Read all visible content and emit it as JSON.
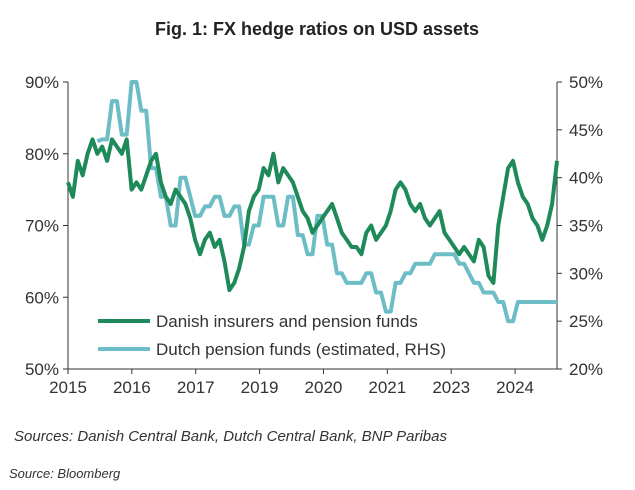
{
  "chart_data": {
    "type": "line",
    "title": "Fig. 1: FX hedge ratios on USD assets",
    "xlabel": "",
    "ylabel": "",
    "x_tick_labels": [
      "2015",
      "2016",
      "2017",
      "2019",
      "2020",
      "2021",
      "2023",
      "2024"
    ],
    "y_left": {
      "range": [
        50,
        90
      ],
      "ticks": [
        90,
        80,
        70,
        60,
        50
      ],
      "tick_labels": [
        "90%",
        "80%",
        "70%",
        "60%",
        "50%"
      ]
    },
    "y_right": {
      "range": [
        20,
        50
      ],
      "ticks": [
        50,
        45,
        40,
        35,
        30,
        25,
        20
      ],
      "tick_labels": [
        "50%",
        "45%",
        "40%",
        "35%",
        "30%",
        "25%",
        "20%"
      ]
    },
    "x_range": [
      0,
      100
    ],
    "x_tick_positions": [
      0,
      13.06,
      26.12,
      39.18,
      52.24,
      65.3,
      78.37,
      91.43
    ],
    "legend": {
      "position": "bottom-left"
    },
    "series": [
      {
        "name": "Danish insurers and pension funds",
        "axis": "left",
        "color": "#1e8a5a",
        "x": [
          0,
          1,
          2,
          3,
          4,
          5,
          6,
          7,
          8,
          9,
          10,
          11,
          12,
          13,
          14,
          15,
          16,
          17,
          18,
          19,
          20,
          21,
          22,
          23,
          24,
          25,
          26,
          27,
          28,
          29,
          30,
          31,
          32,
          33,
          34,
          35,
          36,
          37,
          38,
          39,
          40,
          41,
          42,
          43,
          44,
          45,
          46,
          47,
          48,
          49,
          50,
          51,
          52,
          53,
          54,
          55,
          56,
          57,
          58,
          59,
          60,
          61,
          62,
          63,
          64,
          65,
          66,
          67,
          68,
          69,
          70,
          71,
          72,
          73,
          74,
          75,
          76,
          77,
          78,
          79,
          80,
          81,
          82,
          83,
          84,
          85,
          86,
          87,
          88,
          89,
          90,
          91,
          92,
          93,
          94,
          95,
          96,
          97,
          98,
          99,
          100
        ],
        "y": [
          76,
          74,
          79,
          77,
          80,
          82,
          80,
          81,
          79,
          82,
          81,
          80,
          82,
          75,
          76,
          75,
          77,
          79,
          80,
          76,
          74,
          73,
          75,
          74,
          73,
          71,
          68,
          66,
          68,
          69,
          67,
          68,
          65,
          61,
          62,
          64,
          67,
          72,
          74,
          75,
          78,
          77,
          80,
          76,
          78,
          77,
          76,
          74,
          72,
          71,
          69,
          70,
          71,
          72,
          73,
          71,
          69,
          68,
          67,
          67,
          66,
          69,
          70,
          68,
          69,
          70,
          72,
          75,
          76,
          75,
          73,
          72,
          73,
          71,
          70,
          71,
          72,
          69,
          68,
          67,
          66,
          67,
          66,
          65,
          68,
          67,
          63,
          62,
          70,
          74,
          78,
          79,
          76,
          74,
          73,
          71,
          70,
          68,
          70,
          73,
          79
        ]
      },
      {
        "name": "Dutch pension funds (estimated, RHS)",
        "axis": "right",
        "color": "#6dbdc6",
        "x": [
          0,
          1,
          2,
          3,
          4,
          5,
          6,
          7,
          8,
          9,
          10,
          11,
          12,
          13,
          14,
          15,
          16,
          17,
          18,
          19,
          20,
          21,
          22,
          23,
          24,
          25,
          26,
          27,
          28,
          29,
          30,
          31,
          32,
          33,
          34,
          35,
          36,
          37,
          38,
          39,
          40,
          41,
          42,
          43,
          44,
          45,
          46,
          47,
          48,
          49,
          50,
          51,
          52,
          53,
          54,
          55,
          56,
          57,
          58,
          59,
          60,
          61,
          62,
          63,
          64,
          65,
          66,
          67,
          68,
          69,
          70,
          71,
          72,
          73,
          74,
          75,
          76,
          77,
          78,
          79,
          80,
          81,
          82,
          83,
          84,
          85,
          86,
          87,
          88,
          89,
          90,
          91,
          92,
          93,
          94,
          95,
          96,
          97,
          98,
          99,
          100
        ],
        "y": [
          null,
          null,
          null,
          null,
          null,
          null,
          43.8,
          44,
          44,
          48,
          48,
          44.5,
          44.5,
          50,
          50,
          47,
          47,
          41,
          41,
          38,
          38,
          35,
          35,
          40,
          40,
          38,
          36,
          36,
          37,
          37,
          38,
          38,
          36,
          36,
          37,
          37,
          33,
          33,
          35,
          35,
          38,
          38,
          38,
          35,
          35,
          38,
          38,
          34,
          34,
          32,
          32,
          36,
          36,
          33,
          33,
          30,
          30,
          29,
          29,
          29,
          29,
          30,
          30,
          28,
          28,
          26,
          26,
          29,
          29,
          30,
          30,
          31,
          31,
          31,
          31,
          32,
          32,
          32,
          32,
          32,
          31,
          31,
          30,
          29,
          29,
          28,
          28,
          28,
          27,
          27,
          25,
          25,
          27,
          27,
          27,
          27,
          27,
          27,
          27,
          27,
          27
        ]
      }
    ],
    "annotations": [
      "Sources: Danish Central Bank, Dutch Central Bank, BNP Paribas"
    ]
  },
  "source_note": "Source: Bloomberg"
}
